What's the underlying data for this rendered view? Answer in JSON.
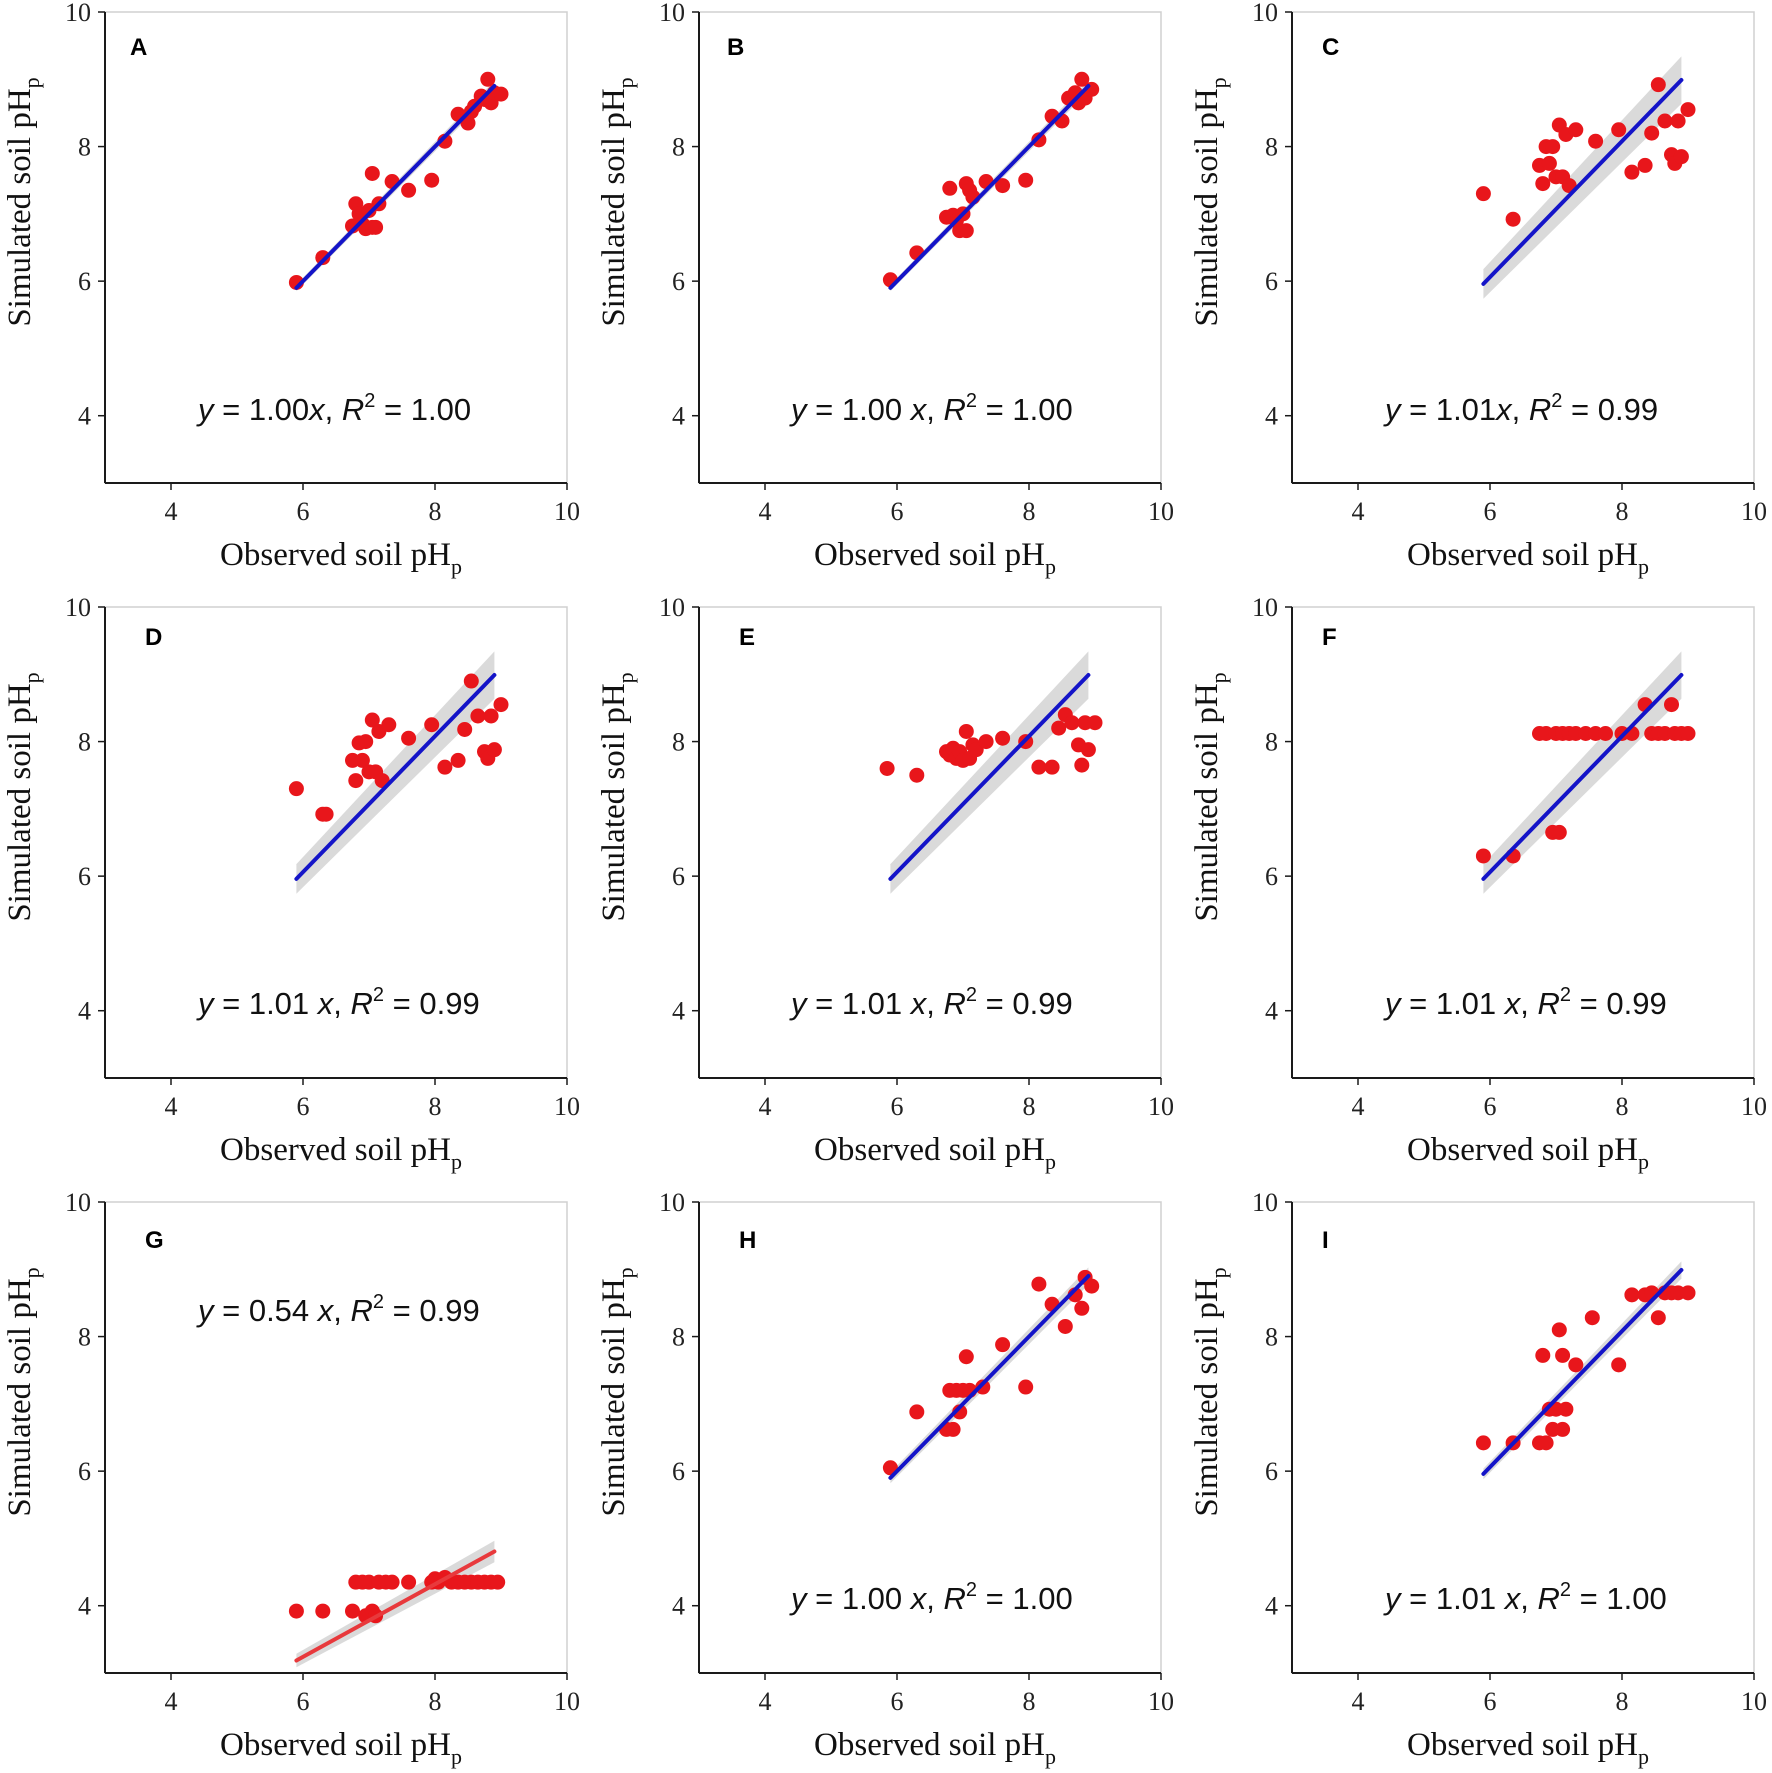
{
  "colors": {
    "points": "#e8161b",
    "fit_line": "#1414c8",
    "fit_line_alt": "#e8393c",
    "ci_band": "#d3d3d3",
    "axis": "#1a1a1a",
    "frame": "#d0d0d0"
  },
  "chart_data": [
    {
      "type": "scatter",
      "panel": "A",
      "equation": {
        "lhs": "y",
        "mid": " = 1.00",
        "var": "x",
        "r2": "1.00"
      },
      "fit": {
        "slope": 1.0,
        "x_range": [
          5.9,
          8.9
        ],
        "band": 0.05,
        "line_color": "#1414c8"
      },
      "xlabel": "Observed soil pH",
      "xlabel_sub": "p",
      "ylabel": "Simulated soil pH",
      "ylabel_sub": "p",
      "xlim": [
        3,
        10
      ],
      "ylim": [
        3,
        10
      ],
      "xticks": [
        "4",
        "6",
        "8",
        "10"
      ],
      "yticks": [
        "4",
        "6",
        "8",
        "10"
      ],
      "points": [
        [
          5.9,
          5.98
        ],
        [
          6.3,
          6.35
        ],
        [
          6.75,
          6.82
        ],
        [
          6.8,
          7.15
        ],
        [
          6.85,
          7.0
        ],
        [
          6.9,
          6.85
        ],
        [
          6.95,
          6.78
        ],
        [
          7.0,
          7.05
        ],
        [
          7.05,
          7.6
        ],
        [
          7.05,
          6.8
        ],
        [
          7.1,
          6.8
        ],
        [
          7.15,
          7.15
        ],
        [
          7.35,
          7.48
        ],
        [
          7.6,
          7.35
        ],
        [
          7.95,
          7.5
        ],
        [
          8.15,
          8.08
        ],
        [
          8.35,
          8.48
        ],
        [
          8.5,
          8.35
        ],
        [
          8.55,
          8.52
        ],
        [
          8.6,
          8.6
        ],
        [
          8.7,
          8.75
        ],
        [
          8.75,
          8.7
        ],
        [
          8.8,
          9.0
        ],
        [
          8.85,
          8.65
        ],
        [
          8.9,
          8.8
        ],
        [
          9.0,
          8.78
        ]
      ]
    },
    {
      "type": "scatter",
      "panel": "B",
      "equation": {
        "lhs": "y",
        "mid": " = 1.00 ",
        "var": "x",
        "r2": "1.00"
      },
      "fit": {
        "slope": 1.0,
        "x_range": [
          5.9,
          8.9
        ],
        "band": 0.05,
        "line_color": "#1414c8"
      },
      "xlabel": "Observed soil pH",
      "xlabel_sub": "p",
      "ylabel": "Simulated soil pH",
      "ylabel_sub": "p",
      "xlim": [
        3,
        10
      ],
      "ylim": [
        3,
        10
      ],
      "xticks": [
        "4",
        "6",
        "8",
        "10"
      ],
      "yticks": [
        "4",
        "6",
        "8",
        "10"
      ],
      "points": [
        [
          5.9,
          6.02
        ],
        [
          6.3,
          6.42
        ],
        [
          6.75,
          6.95
        ],
        [
          6.8,
          7.38
        ],
        [
          6.85,
          6.98
        ],
        [
          6.9,
          6.9
        ],
        [
          6.95,
          6.75
        ],
        [
          7.0,
          7.0
        ],
        [
          7.05,
          7.45
        ],
        [
          7.05,
          6.75
        ],
        [
          7.1,
          7.35
        ],
        [
          7.15,
          7.25
        ],
        [
          7.35,
          7.48
        ],
        [
          7.6,
          7.42
        ],
        [
          7.95,
          7.5
        ],
        [
          8.15,
          8.1
        ],
        [
          8.35,
          8.45
        ],
        [
          8.5,
          8.38
        ],
        [
          8.6,
          8.72
        ],
        [
          8.7,
          8.8
        ],
        [
          8.75,
          8.65
        ],
        [
          8.8,
          9.0
        ],
        [
          8.85,
          8.72
        ],
        [
          8.95,
          8.85
        ]
      ]
    },
    {
      "type": "scatter",
      "panel": "C",
      "equation": {
        "lhs": "y",
        "mid": " = 1.01",
        "var": "x",
        "r2": "0.99"
      },
      "fit": {
        "slope": 1.01,
        "x_range": [
          5.9,
          8.9
        ],
        "band": 0.22,
        "line_color": "#1414c8"
      },
      "xlabel": "Observed soil pH",
      "xlabel_sub": "p",
      "ylabel": "Simulated soil pH",
      "ylabel_sub": "p",
      "xlim": [
        3,
        10
      ],
      "ylim": [
        3,
        10
      ],
      "xticks": [
        "4",
        "6",
        "8",
        "10"
      ],
      "yticks": [
        "4",
        "6",
        "8",
        "10"
      ],
      "points": [
        [
          5.9,
          7.3
        ],
        [
          6.35,
          6.92
        ],
        [
          6.75,
          7.72
        ],
        [
          6.8,
          7.45
        ],
        [
          6.85,
          8.0
        ],
        [
          6.9,
          7.75
        ],
        [
          6.95,
          8.0
        ],
        [
          7.0,
          7.55
        ],
        [
          7.05,
          8.32
        ],
        [
          7.1,
          7.55
        ],
        [
          7.15,
          8.18
        ],
        [
          7.2,
          7.42
        ],
        [
          7.3,
          8.25
        ],
        [
          7.6,
          8.08
        ],
        [
          7.95,
          8.25
        ],
        [
          8.15,
          7.62
        ],
        [
          8.35,
          7.72
        ],
        [
          8.45,
          8.2
        ],
        [
          8.55,
          8.92
        ],
        [
          8.65,
          8.38
        ],
        [
          8.75,
          7.88
        ],
        [
          8.8,
          7.75
        ],
        [
          8.85,
          8.38
        ],
        [
          8.9,
          7.85
        ],
        [
          9.0,
          8.55
        ]
      ]
    },
    {
      "type": "scatter",
      "panel": "D",
      "equation": {
        "lhs": "y",
        "mid": " = 1.01 ",
        "var": "x",
        "r2": "0.99"
      },
      "fit": {
        "slope": 1.01,
        "x_range": [
          5.9,
          8.9
        ],
        "band": 0.22,
        "line_color": "#1414c8"
      },
      "xlabel": "Observed soil pH",
      "xlabel_sub": "p",
      "ylabel": "Simulated soil pH",
      "ylabel_sub": "p",
      "xlim": [
        3,
        10
      ],
      "ylim": [
        3,
        10
      ],
      "xticks": [
        "4",
        "6",
        "8",
        "10"
      ],
      "yticks": [
        "4",
        "6",
        "8",
        "10"
      ],
      "points": [
        [
          5.9,
          7.3
        ],
        [
          6.3,
          6.92
        ],
        [
          6.35,
          6.92
        ],
        [
          6.75,
          7.72
        ],
        [
          6.8,
          7.42
        ],
        [
          6.85,
          7.98
        ],
        [
          6.9,
          7.72
        ],
        [
          6.95,
          8.0
        ],
        [
          7.0,
          7.55
        ],
        [
          7.05,
          8.32
        ],
        [
          7.1,
          7.55
        ],
        [
          7.15,
          8.15
        ],
        [
          7.2,
          7.42
        ],
        [
          7.3,
          8.25
        ],
        [
          7.6,
          8.05
        ],
        [
          7.95,
          8.25
        ],
        [
          8.15,
          7.62
        ],
        [
          8.35,
          7.72
        ],
        [
          8.45,
          8.18
        ],
        [
          8.55,
          8.9
        ],
        [
          8.65,
          8.38
        ],
        [
          8.75,
          7.85
        ],
        [
          8.8,
          7.75
        ],
        [
          8.85,
          8.38
        ],
        [
          8.9,
          7.88
        ],
        [
          9.0,
          8.55
        ]
      ]
    },
    {
      "type": "scatter",
      "panel": "E",
      "equation": {
        "lhs": "y",
        "mid": " = 1.01 ",
        "var": "x",
        "r2": "0.99"
      },
      "fit": {
        "slope": 1.01,
        "x_range": [
          5.9,
          8.9
        ],
        "band": 0.22,
        "line_color": "#1414c8"
      },
      "xlabel": "Observed soil pH",
      "xlabel_sub": "p",
      "ylabel": "Simulated soil pH",
      "ylabel_sub": "p",
      "xlim": [
        3,
        10
      ],
      "ylim": [
        3,
        10
      ],
      "xticks": [
        "4",
        "6",
        "8",
        "10"
      ],
      "yticks": [
        "4",
        "6",
        "8",
        "10"
      ],
      "points": [
        [
          5.85,
          7.6
        ],
        [
          6.3,
          7.5
        ],
        [
          6.75,
          7.85
        ],
        [
          6.8,
          7.8
        ],
        [
          6.85,
          7.9
        ],
        [
          6.9,
          7.75
        ],
        [
          6.95,
          7.85
        ],
        [
          7.0,
          7.72
        ],
        [
          7.05,
          8.15
        ],
        [
          7.1,
          7.75
        ],
        [
          7.15,
          7.95
        ],
        [
          7.2,
          7.88
        ],
        [
          7.35,
          8.0
        ],
        [
          7.6,
          8.05
        ],
        [
          7.95,
          8.0
        ],
        [
          8.15,
          7.62
        ],
        [
          8.35,
          7.62
        ],
        [
          8.45,
          8.2
        ],
        [
          8.55,
          8.4
        ],
        [
          8.65,
          8.28
        ],
        [
          8.75,
          7.95
        ],
        [
          8.8,
          7.65
        ],
        [
          8.85,
          8.28
        ],
        [
          8.9,
          7.88
        ],
        [
          9.0,
          8.28
        ]
      ]
    },
    {
      "type": "scatter",
      "panel": "F",
      "equation": {
        "lhs": "y",
        "mid": " = 1.01 ",
        "var": "x",
        "r2": "0.99"
      },
      "fit": {
        "slope": 1.01,
        "x_range": [
          5.9,
          8.9
        ],
        "band": 0.22,
        "line_color": "#1414c8"
      },
      "xlabel": "Observed soil pH",
      "xlabel_sub": "p",
      "ylabel": "Simulated soil pH",
      "ylabel_sub": "p",
      "xlim": [
        3,
        10
      ],
      "ylim": [
        3,
        10
      ],
      "xticks": [
        "4",
        "6",
        "8",
        "10"
      ],
      "yticks": [
        "4",
        "6",
        "8",
        "10"
      ],
      "points": [
        [
          5.9,
          6.3
        ],
        [
          6.35,
          6.3
        ],
        [
          6.75,
          8.12
        ],
        [
          6.85,
          8.12
        ],
        [
          6.95,
          6.65
        ],
        [
          7.0,
          8.12
        ],
        [
          7.05,
          6.65
        ],
        [
          7.1,
          8.12
        ],
        [
          7.2,
          8.12
        ],
        [
          7.3,
          8.12
        ],
        [
          7.45,
          8.12
        ],
        [
          7.6,
          8.12
        ],
        [
          7.75,
          8.12
        ],
        [
          8.0,
          8.12
        ],
        [
          8.15,
          8.12
        ],
        [
          8.35,
          8.55
        ],
        [
          8.45,
          8.12
        ],
        [
          8.55,
          8.12
        ],
        [
          8.65,
          8.12
        ],
        [
          8.75,
          8.55
        ],
        [
          8.8,
          8.12
        ],
        [
          8.9,
          8.12
        ],
        [
          9.0,
          8.12
        ]
      ]
    },
    {
      "type": "scatter",
      "panel": "G",
      "equation": {
        "lhs": "y",
        "mid": " = 0.54 ",
        "var": "x",
        "r2": "0.99"
      },
      "fit": {
        "slope": 0.54,
        "x_range": [
          5.9,
          8.9
        ],
        "band": 0.1,
        "line_color": "#e8393c"
      },
      "xlabel": "Observed soil pH",
      "xlabel_sub": "p",
      "ylabel": "Simulated soil pH",
      "ylabel_sub": "p",
      "xlim": [
        3,
        10
      ],
      "ylim": [
        3,
        10
      ],
      "xticks": [
        "4",
        "6",
        "8",
        "10"
      ],
      "yticks": [
        "4",
        "6",
        "8",
        "10"
      ],
      "points": [
        [
          5.9,
          3.92
        ],
        [
          6.3,
          3.92
        ],
        [
          6.75,
          3.92
        ],
        [
          6.8,
          4.35
        ],
        [
          6.9,
          4.35
        ],
        [
          6.95,
          3.85
        ],
        [
          7.0,
          4.35
        ],
        [
          7.05,
          3.92
        ],
        [
          7.1,
          3.85
        ],
        [
          7.15,
          4.35
        ],
        [
          7.25,
          4.35
        ],
        [
          7.35,
          4.35
        ],
        [
          7.6,
          4.35
        ],
        [
          7.95,
          4.35
        ],
        [
          8.0,
          4.4
        ],
        [
          8.05,
          4.35
        ],
        [
          8.15,
          4.42
        ],
        [
          8.25,
          4.35
        ],
        [
          8.35,
          4.35
        ],
        [
          8.45,
          4.35
        ],
        [
          8.55,
          4.35
        ],
        [
          8.65,
          4.35
        ],
        [
          8.75,
          4.35
        ],
        [
          8.85,
          4.35
        ],
        [
          8.95,
          4.35
        ]
      ]
    },
    {
      "type": "scatter",
      "panel": "H",
      "equation": {
        "lhs": "y",
        "mid": " = 1.00 ",
        "var": "x",
        "r2": "1.00"
      },
      "fit": {
        "slope": 1.0,
        "x_range": [
          5.9,
          8.9
        ],
        "band": 0.08,
        "line_color": "#1414c8"
      },
      "xlabel": "Observed soil pH",
      "xlabel_sub": "p",
      "ylabel": "Simulated soil pH",
      "ylabel_sub": "p",
      "xlim": [
        3,
        10
      ],
      "ylim": [
        3,
        10
      ],
      "xticks": [
        "4",
        "6",
        "8",
        "10"
      ],
      "yticks": [
        "4",
        "6",
        "8",
        "10"
      ],
      "points": [
        [
          5.9,
          6.05
        ],
        [
          6.3,
          6.88
        ],
        [
          6.75,
          6.62
        ],
        [
          6.8,
          7.2
        ],
        [
          6.85,
          6.62
        ],
        [
          6.9,
          7.2
        ],
        [
          6.95,
          6.88
        ],
        [
          7.0,
          7.2
        ],
        [
          7.05,
          7.7
        ],
        [
          7.1,
          7.2
        ],
        [
          7.3,
          7.25
        ],
        [
          7.6,
          7.88
        ],
        [
          7.95,
          7.25
        ],
        [
          8.15,
          8.78
        ],
        [
          8.35,
          8.48
        ],
        [
          8.55,
          8.15
        ],
        [
          8.7,
          8.62
        ],
        [
          8.8,
          8.42
        ],
        [
          8.85,
          8.88
        ],
        [
          8.95,
          8.75
        ]
      ]
    },
    {
      "type": "scatter",
      "panel": "I",
      "equation": {
        "lhs": "y",
        "mid": " = 1.01 ",
        "var": "x",
        "r2": "1.00"
      },
      "fit": {
        "slope": 1.01,
        "x_range": [
          5.9,
          8.9
        ],
        "band": 0.08,
        "line_color": "#1414c8"
      },
      "xlabel": "Observed soil pH",
      "xlabel_sub": "p",
      "ylabel": "Simulated soil pH",
      "ylabel_sub": "p",
      "xlim": [
        3,
        10
      ],
      "ylim": [
        3,
        10
      ],
      "xticks": [
        "4",
        "6",
        "8",
        "10"
      ],
      "yticks": [
        "4",
        "6",
        "8",
        "10"
      ],
      "points": [
        [
          5.9,
          6.42
        ],
        [
          6.35,
          6.42
        ],
        [
          6.75,
          6.42
        ],
        [
          6.8,
          7.72
        ],
        [
          6.85,
          6.42
        ],
        [
          6.9,
          6.92
        ],
        [
          6.95,
          6.62
        ],
        [
          7.0,
          6.92
        ],
        [
          7.05,
          8.1
        ],
        [
          7.1,
          6.62
        ],
        [
          7.15,
          6.92
        ],
        [
          7.1,
          7.72
        ],
        [
          7.3,
          7.58
        ],
        [
          7.55,
          8.28
        ],
        [
          7.95,
          7.58
        ],
        [
          8.15,
          8.62
        ],
        [
          8.35,
          8.62
        ],
        [
          8.45,
          8.65
        ],
        [
          8.55,
          8.28
        ],
        [
          8.65,
          8.65
        ],
        [
          8.75,
          8.65
        ],
        [
          8.85,
          8.65
        ],
        [
          9.0,
          8.65
        ]
      ]
    }
  ]
}
